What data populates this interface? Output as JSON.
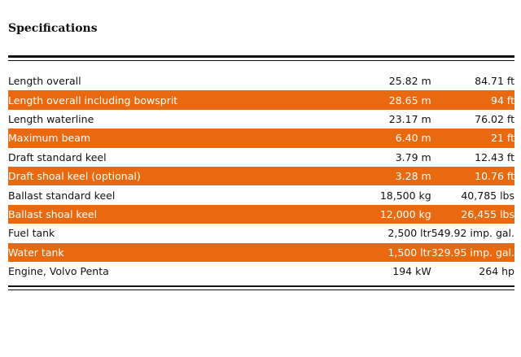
{
  "title": "Specifications",
  "table": {
    "rows": [
      [
        "Length overall",
        "25.82 m",
        "84.71 ft"
      ],
      [
        "Length overall including bowsprit",
        "28.65 m",
        "94 ft"
      ],
      [
        "Length waterline",
        "23.17 m",
        "76.02 ft"
      ],
      [
        "Maximum beam",
        "6.40 m",
        "21 ft"
      ],
      [
        "Draft standard keel",
        "3.79 m",
        "12.43 ft"
      ],
      [
        "Draft shoal keel (optional)",
        "3.28 m",
        "10.76 ft"
      ],
      [
        "Ballast standard keel",
        "18,500 kg",
        "40,785 lbs"
      ],
      [
        "Ballast shoal keel",
        "12,000 kg",
        "26,455 lbs"
      ],
      [
        "Fuel tank",
        "2,500 ltr",
        "549.92 imp. gal."
      ],
      [
        "Water tank",
        "1,500 ltr",
        "329.95 imp. gal."
      ],
      [
        "Engine, Volvo Penta",
        "194 kW",
        "264 hp"
      ]
    ]
  }
}
